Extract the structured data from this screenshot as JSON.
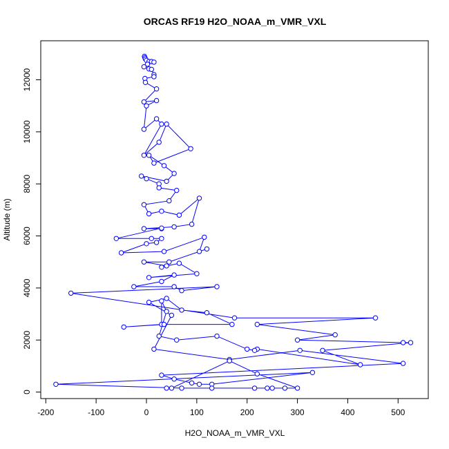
{
  "chart_data": {
    "type": "line",
    "title": "ORCAS RF19 H2O_NOAA_m_VMR_VXL",
    "xlabel": "H2O_NOAA_m_VMR_VXL",
    "ylabel": "Altitude (m)",
    "xlim": [
      -210,
      560
    ],
    "ylim": [
      -250,
      13500
    ],
    "xticks": [
      -200,
      -100,
      0,
      100,
      200,
      300,
      400,
      500
    ],
    "yticks": [
      0,
      2000,
      4000,
      6000,
      8000,
      10000,
      12000
    ],
    "xtick_labels": [
      "-200",
      "-100",
      "0",
      "100",
      "200",
      "300",
      "400",
      "500"
    ],
    "ytick_labels": [
      "0",
      "2000",
      "4000",
      "6000",
      "8000",
      "10000",
      "12000"
    ],
    "grid": false,
    "legend": "none",
    "series_color": "#0000ff",
    "marker": "open-circle",
    "series": [
      {
        "points": [
          [
            -4,
            12900
          ],
          [
            -3,
            12850
          ],
          [
            -2,
            12800
          ],
          [
            0,
            12750
          ],
          [
            5,
            12700
          ],
          [
            10,
            12700
          ],
          [
            15,
            12680
          ],
          [
            2,
            12600
          ],
          [
            -5,
            12500
          ],
          [
            5,
            12420
          ],
          [
            10,
            12400
          ],
          [
            15,
            12200
          ],
          [
            15,
            12120
          ],
          [
            -3,
            12050
          ],
          [
            -2,
            11900
          ],
          [
            20,
            11650
          ],
          [
            -5,
            11150
          ],
          [
            20,
            11200
          ],
          [
            0,
            11000
          ],
          [
            -5,
            10100
          ],
          [
            20,
            10500
          ],
          [
            30,
            10300
          ],
          [
            -5,
            9100
          ],
          [
            25,
            9600
          ],
          [
            40,
            10300
          ],
          [
            88,
            9350
          ],
          [
            15,
            8800
          ],
          [
            5,
            9100
          ],
          [
            35,
            8700
          ],
          [
            55,
            8400
          ],
          [
            40,
            8100
          ],
          [
            -10,
            8300
          ],
          [
            0,
            8200
          ],
          [
            25,
            8000
          ],
          [
            25,
            7850
          ],
          [
            60,
            7750
          ],
          [
            45,
            7350
          ],
          [
            -5,
            7200
          ],
          [
            5,
            6850
          ],
          [
            30,
            6950
          ],
          [
            65,
            6800
          ],
          [
            105,
            7450
          ],
          [
            90,
            6450
          ],
          [
            55,
            6350
          ],
          [
            -5,
            6280
          ],
          [
            30,
            6280
          ],
          [
            30,
            6300
          ],
          [
            -60,
            5900
          ],
          [
            10,
            5900
          ],
          [
            30,
            5900
          ],
          [
            20,
            5750
          ],
          [
            0,
            5700
          ],
          [
            -50,
            5350
          ],
          [
            35,
            5400
          ],
          [
            115,
            5950
          ],
          [
            105,
            5400
          ],
          [
            120,
            5500
          ],
          [
            45,
            5000
          ],
          [
            -5,
            5000
          ],
          [
            40,
            4850
          ],
          [
            30,
            4800
          ],
          [
            65,
            4950
          ],
          [
            100,
            4550
          ],
          [
            5,
            4400
          ],
          [
            55,
            4500
          ],
          [
            30,
            4250
          ],
          [
            -25,
            4050
          ],
          [
            55,
            4050
          ],
          [
            70,
            3900
          ],
          [
            140,
            4050
          ],
          [
            -150,
            3800
          ],
          [
            175,
            2850
          ],
          [
            455,
            2850
          ],
          [
            220,
            2600
          ],
          [
            375,
            2200
          ],
          [
            300,
            2000
          ],
          [
            510,
            1900
          ],
          [
            525,
            1900
          ],
          [
            350,
            1600
          ],
          [
            425,
            1050
          ],
          [
            220,
            1650
          ],
          [
            215,
            1600
          ],
          [
            200,
            1650
          ],
          [
            140,
            2150
          ],
          [
            60,
            2000
          ],
          [
            25,
            2150
          ],
          [
            40,
            3100
          ],
          [
            30,
            3500
          ],
          [
            30,
            2600
          ],
          [
            -45,
            2500
          ],
          [
            35,
            2600
          ],
          [
            170,
            2600
          ],
          [
            120,
            3050
          ],
          [
            70,
            3150
          ],
          [
            40,
            3600
          ],
          [
            5,
            3450
          ],
          [
            50,
            2950
          ],
          [
            15,
            1650
          ],
          [
            165,
            1250
          ],
          [
            305,
            1600
          ],
          [
            510,
            1100
          ],
          [
            30,
            650
          ],
          [
            55,
            500
          ],
          [
            90,
            350
          ],
          [
            105,
            300
          ],
          [
            130,
            300
          ],
          [
            330,
            750
          ],
          [
            -180,
            300
          ],
          [
            70,
            150
          ],
          [
            130,
            150
          ],
          [
            215,
            150
          ],
          [
            240,
            150
          ],
          [
            250,
            150
          ],
          [
            275,
            150
          ],
          [
            300,
            150
          ],
          [
            220,
            700
          ],
          [
            165,
            1200
          ],
          [
            50,
            150
          ],
          [
            40,
            150
          ]
        ]
      }
    ]
  }
}
